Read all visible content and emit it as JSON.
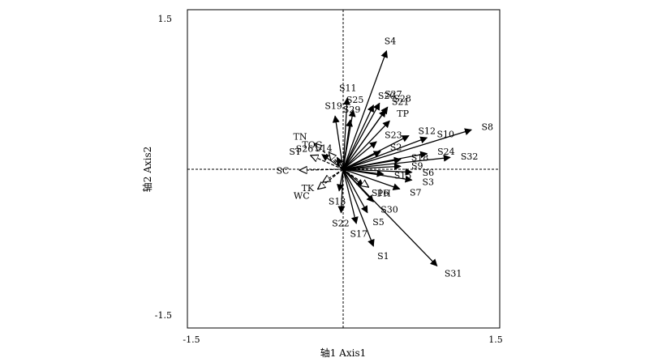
{
  "chart_data": {
    "type": "scatter",
    "subtype": "rda-biplot",
    "title": "",
    "xlabel": "轴1 Axis1",
    "ylabel": "轴2 Axis2",
    "xlim": [
      -1.5,
      1.5
    ],
    "ylim": [
      -1.5,
      1.5
    ],
    "x_ticks": [
      "-1.5",
      "1.5"
    ],
    "y_ticks": [
      "1.5",
      "-1.5"
    ],
    "grid": false,
    "reference_lines": "dashed lines at x=0 and y=0",
    "colors": {
      "species": "#000000",
      "environment": "#000000"
    },
    "species": [
      {
        "name": "S4",
        "x": 0.43,
        "y": 1.2
      },
      {
        "name": "S11",
        "x": 0.04,
        "y": 0.72
      },
      {
        "name": "S25",
        "x": 0.1,
        "y": 0.6
      },
      {
        "name": "S27",
        "x": 0.36,
        "y": 0.67
      },
      {
        "name": "S20",
        "x": 0.3,
        "y": 0.65
      },
      {
        "name": "S28",
        "x": 0.44,
        "y": 0.63
      },
      {
        "name": "S21",
        "x": 0.42,
        "y": 0.6
      },
      {
        "name": "S19",
        "x": -0.08,
        "y": 0.54
      },
      {
        "name": "S29",
        "x": 0.07,
        "y": 0.5
      },
      {
        "name": "TP",
        "x": 0.46,
        "y": 0.49
      },
      {
        "name": "S8",
        "x": 1.27,
        "y": 0.4
      },
      {
        "name": "S12",
        "x": 0.65,
        "y": 0.34
      },
      {
        "name": "S10",
        "x": 0.83,
        "y": 0.32
      },
      {
        "name": "S23",
        "x": 0.33,
        "y": 0.28
      },
      {
        "name": "S2",
        "x": 0.37,
        "y": 0.18
      },
      {
        "name": "S24",
        "x": 0.83,
        "y": 0.16
      },
      {
        "name": "S32",
        "x": 1.06,
        "y": 0.12
      },
      {
        "name": "S18",
        "x": 0.57,
        "y": 0.1
      },
      {
        "name": "S9",
        "x": 0.57,
        "y": 0.03
      },
      {
        "name": "S6",
        "x": 0.68,
        "y": -0.03
      },
      {
        "name": "S15",
        "x": 0.4,
        "y": -0.05
      },
      {
        "name": "S3",
        "x": 0.68,
        "y": -0.11
      },
      {
        "name": "S16",
        "x": 0.2,
        "y": -0.17
      },
      {
        "name": "S7",
        "x": 0.56,
        "y": -0.2
      },
      {
        "name": "S30",
        "x": 0.3,
        "y": -0.33
      },
      {
        "name": "S5",
        "x": 0.24,
        "y": -0.44
      },
      {
        "name": "S17",
        "x": 0.13,
        "y": -0.55
      },
      {
        "name": "S1",
        "x": 0.3,
        "y": -0.78
      },
      {
        "name": "S31",
        "x": 0.93,
        "y": -0.98
      },
      {
        "name": "S22",
        "x": -0.02,
        "y": -0.44
      },
      {
        "name": "S13",
        "x": -0.04,
        "y": -0.22
      },
      {
        "name": "S14",
        "x": -0.06,
        "y": 0.12
      },
      {
        "name": "S26",
        "x": -0.21,
        "y": 0.15
      }
    ],
    "environment": [
      {
        "name": "TN",
        "x": -0.28,
        "y": 0.26
      },
      {
        "name": "TOC",
        "x": -0.14,
        "y": 0.17
      },
      {
        "name": "ST",
        "x": -0.32,
        "y": 0.14
      },
      {
        "name": "SC",
        "x": -0.43,
        "y": -0.01
      },
      {
        "name": "TK",
        "x": -0.2,
        "y": -0.13
      },
      {
        "name": "WC",
        "x": -0.25,
        "y": -0.2
      },
      {
        "name": "PH",
        "x": 0.25,
        "y": -0.18
      }
    ]
  }
}
